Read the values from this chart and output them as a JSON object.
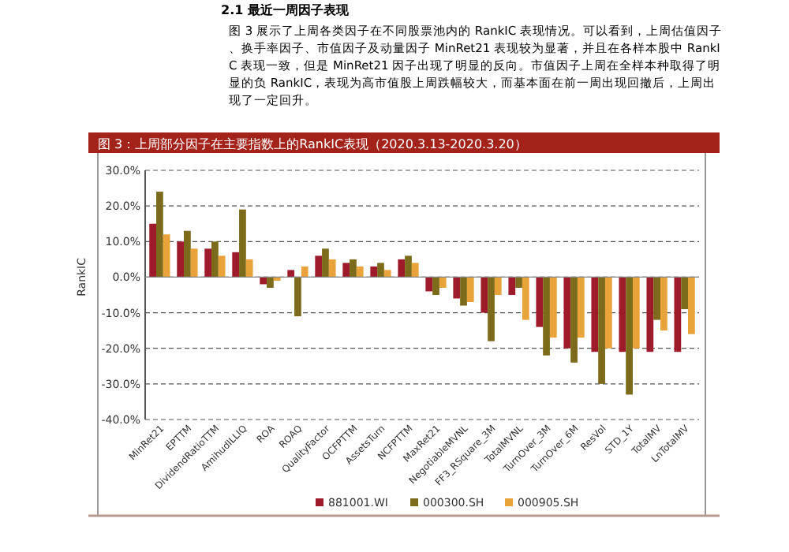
{
  "chart_data": {
    "type": "bar",
    "title": "图 3：上周部分因子在主要指数上的RankIC表现（2020.3.13-2020.3.20）",
    "ylabel": "RankIC",
    "annotations": [
      "2.1 最近一周因子表现",
      "图 3 展示了上周各类因子在不同股票池内的 RankIC 表现情况。可以看到，上周估值因子、换手率因子、市值因子及动量因子 MinRet21 表现较为显著，并且在各样本股中 RankIC 表现一致，但是 MinRet21 因子出现了明显的反向。市值因子上周在全样本种取得了明显的负 RankIC，表现为高市值股上周跌幅较大，而基本面在前一周出现回撤后，上周出现了一定回升。"
    ],
    "categories": [
      "MinRet21",
      "EPTTM",
      "DividendRatioTTM",
      "AmihudILLIQ",
      "ROA",
      "ROAQ",
      "QualityFactor",
      "OCFPTTM",
      "AssetsTurn",
      "NCFPTTM",
      "MaxRet21",
      "NegotiableMVNL",
      "FF3_RSquare_3M",
      "TotalMVNL",
      "TurnOver_3M",
      "TurnOver_6M",
      "ResVol",
      "STD_1Y",
      "TotalMV",
      "LnTotalMV"
    ],
    "series": [
      {
        "name": "881001.WI",
        "color": "#9e1b2c",
        "values": [
          15,
          10,
          8,
          7,
          -2,
          2,
          6,
          4,
          3,
          5,
          -4,
          -6,
          -10,
          -5,
          -14,
          -20,
          -21,
          -21,
          -21,
          -21
        ]
      },
      {
        "name": "000300.SH",
        "color": "#7d6b1c",
        "values": [
          24,
          13,
          10,
          19,
          -3,
          -11,
          8,
          5,
          4,
          6,
          -5,
          -8,
          -18,
          -3,
          -22,
          -24,
          -30,
          -33,
          -12,
          -9
        ]
      },
      {
        "name": "000905.SH",
        "color": "#e8a33a",
        "values": [
          12,
          8,
          6,
          5,
          -1,
          3,
          5,
          3,
          2,
          4,
          -3,
          -7,
          -5,
          -12,
          -17,
          -17,
          -20,
          -20,
          -15,
          -16
        ]
      }
    ],
    "ylim": [
      -40,
      30
    ],
    "yticks": [
      {
        "value": 30,
        "label": "30.0%"
      },
      {
        "value": 20,
        "label": "20.0%"
      },
      {
        "value": 10,
        "label": "10.0%"
      },
      {
        "value": 0,
        "label": "0.0%"
      },
      {
        "value": -10,
        "label": "-10.0%"
      },
      {
        "value": -20,
        "label": "-20.0%"
      },
      {
        "value": -30,
        "label": "-30.0%"
      },
      {
        "value": -40,
        "label": "-40.0%"
      }
    ],
    "grid": "y",
    "legend": "bottom"
  }
}
